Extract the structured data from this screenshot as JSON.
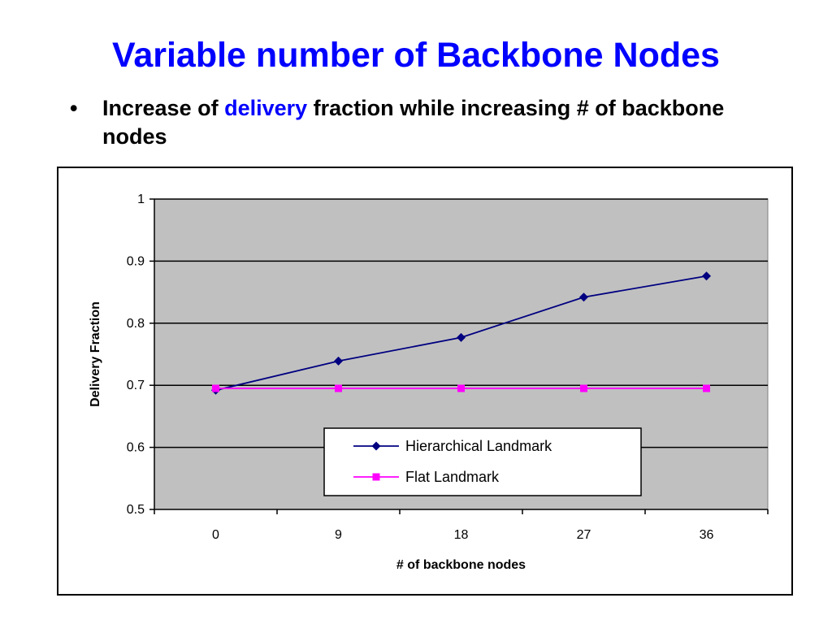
{
  "slide": {
    "title": "Variable number of Backbone Nodes",
    "bullet": {
      "symbol": "•",
      "text_before": "Increase of ",
      "text_highlight": "delivery",
      "text_after": " fraction while increasing # of backbone nodes"
    }
  },
  "colors": {
    "title": "#0000ff",
    "plot_background": "#c0c0c0",
    "gridline": "#000000",
    "hierarchical": "#000080",
    "flat": "#ff00ff"
  },
  "chart_data": {
    "type": "line",
    "title": "",
    "xlabel": "# of backbone nodes",
    "ylabel": "Delivery Fraction",
    "categories": [
      "0",
      "9",
      "18",
      "27",
      "36"
    ],
    "ylim": [
      0.5,
      1
    ],
    "yticks": [
      "0.5",
      "0.6",
      "0.7",
      "0.8",
      "0.9",
      "1"
    ],
    "grid": "horizontal",
    "legend_position": "inside-bottom-center",
    "series": [
      {
        "name": "Hierarchical Landmark",
        "marker": "diamond",
        "color": "#000080",
        "values": [
          0.692,
          0.739,
          0.777,
          0.842,
          0.876
        ]
      },
      {
        "name": "Flat Landmark",
        "marker": "square",
        "color": "#ff00ff",
        "values": [
          0.695,
          0.695,
          0.695,
          0.695,
          0.695
        ]
      }
    ]
  }
}
